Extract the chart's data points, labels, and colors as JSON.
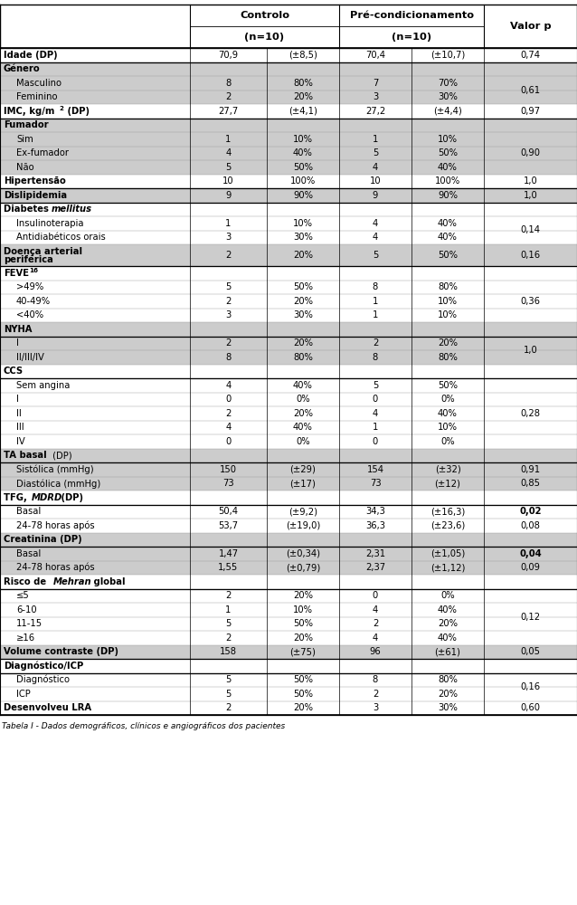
{
  "title": "Tabela I - Dados demográficos, clínicos e angiográficos dos pacientes",
  "rows": [
    {
      "label": "Idade (DP)",
      "bold": true,
      "indent": 0,
      "c1": "70,9",
      "c2": "(±8,5)",
      "c3": "70,4",
      "c4": "(±10,7)",
      "p": "0,74",
      "p_bold": false,
      "gray": false,
      "double_row": false
    },
    {
      "label": "Género",
      "bold": true,
      "indent": 0,
      "c1": "",
      "c2": "",
      "c3": "",
      "c4": "",
      "p": "",
      "p_bold": false,
      "gray": true,
      "double_row": false
    },
    {
      "label": "Masculino",
      "bold": false,
      "indent": 1,
      "c1": "8",
      "c2": "80%",
      "c3": "7",
      "c4": "70%",
      "p": "0,61",
      "p_bold": false,
      "gray": true,
      "double_row": false
    },
    {
      "label": "Feminino",
      "bold": false,
      "indent": 1,
      "c1": "2",
      "c2": "20%",
      "c3": "3",
      "c4": "30%",
      "p": "",
      "p_bold": false,
      "gray": true,
      "double_row": false
    },
    {
      "label": "IMC, kg/m² (DP)",
      "bold": true,
      "indent": 0,
      "c1": "27,7",
      "c2": "(±4,1)",
      "c3": "27,2",
      "c4": "(±4,4)",
      "p": "0,97",
      "p_bold": false,
      "gray": false,
      "double_row": false,
      "special": "imc"
    },
    {
      "label": "Fumador",
      "bold": true,
      "indent": 0,
      "c1": "",
      "c2": "",
      "c3": "",
      "c4": "",
      "p": "",
      "p_bold": false,
      "gray": true,
      "double_row": false
    },
    {
      "label": "Sim",
      "bold": false,
      "indent": 1,
      "c1": "1",
      "c2": "10%",
      "c3": "1",
      "c4": "10%",
      "p": "0,90",
      "p_bold": false,
      "gray": true,
      "double_row": false
    },
    {
      "label": "Ex-fumador",
      "bold": false,
      "indent": 1,
      "c1": "4",
      "c2": "40%",
      "c3": "5",
      "c4": "50%",
      "p": "",
      "p_bold": false,
      "gray": true,
      "double_row": false
    },
    {
      "label": "Não",
      "bold": false,
      "indent": 1,
      "c1": "5",
      "c2": "50%",
      "c3": "4",
      "c4": "40%",
      "p": "",
      "p_bold": false,
      "gray": true,
      "double_row": false
    },
    {
      "label": "Hipertensão",
      "bold": true,
      "indent": 0,
      "c1": "10",
      "c2": "100%",
      "c3": "10",
      "c4": "100%",
      "p": "1,0",
      "p_bold": false,
      "gray": false,
      "double_row": false
    },
    {
      "label": "Dislipidemia",
      "bold": true,
      "indent": 0,
      "c1": "9",
      "c2": "90%",
      "c3": "9",
      "c4": "90%",
      "p": "1,0",
      "p_bold": false,
      "gray": true,
      "double_row": false
    },
    {
      "label": "Diabetes mellitus",
      "bold": true,
      "indent": 0,
      "c1": "",
      "c2": "",
      "c3": "",
      "c4": "",
      "p": "",
      "p_bold": false,
      "gray": false,
      "double_row": false,
      "special": "diabetes"
    },
    {
      "label": "Insulinoterapia",
      "bold": false,
      "indent": 1,
      "c1": "1",
      "c2": "10%",
      "c3": "4",
      "c4": "40%",
      "p": "0,14",
      "p_bold": false,
      "gray": false,
      "double_row": false
    },
    {
      "label": "Antidiabéticos orais",
      "bold": false,
      "indent": 1,
      "c1": "3",
      "c2": "30%",
      "c3": "4",
      "c4": "40%",
      "p": "",
      "p_bold": false,
      "gray": false,
      "double_row": false
    },
    {
      "label": "Doença arterial\nperiférica",
      "bold": true,
      "indent": 0,
      "c1": "2",
      "c2": "20%",
      "c3": "5",
      "c4": "50%",
      "p": "0,16",
      "p_bold": false,
      "gray": true,
      "double_row": true
    },
    {
      "label": "FEVE",
      "bold": true,
      "indent": 0,
      "c1": "",
      "c2": "",
      "c3": "",
      "c4": "",
      "p": "",
      "p_bold": false,
      "gray": false,
      "double_row": false,
      "special": "feve"
    },
    {
      "label": ">49%",
      "bold": false,
      "indent": 1,
      "c1": "5",
      "c2": "50%",
      "c3": "8",
      "c4": "80%",
      "p": "0,36",
      "p_bold": false,
      "gray": false,
      "double_row": false
    },
    {
      "label": "40-49%",
      "bold": false,
      "indent": 1,
      "c1": "2",
      "c2": "20%",
      "c3": "1",
      "c4": "10%",
      "p": "",
      "p_bold": false,
      "gray": false,
      "double_row": false
    },
    {
      "label": "<40%",
      "bold": false,
      "indent": 1,
      "c1": "3",
      "c2": "30%",
      "c3": "1",
      "c4": "10%",
      "p": "",
      "p_bold": false,
      "gray": false,
      "double_row": false
    },
    {
      "label": "NYHA",
      "bold": true,
      "indent": 0,
      "c1": "",
      "c2": "",
      "c3": "",
      "c4": "",
      "p": "",
      "p_bold": false,
      "gray": true,
      "double_row": false
    },
    {
      "label": "I",
      "bold": false,
      "indent": 1,
      "c1": "2",
      "c2": "20%",
      "c3": "2",
      "c4": "20%",
      "p": "1,0",
      "p_bold": false,
      "gray": true,
      "double_row": false
    },
    {
      "label": "II/III/IV",
      "bold": false,
      "indent": 1,
      "c1": "8",
      "c2": "80%",
      "c3": "8",
      "c4": "80%",
      "p": "",
      "p_bold": false,
      "gray": true,
      "double_row": false
    },
    {
      "label": "CCS",
      "bold": true,
      "indent": 0,
      "c1": "",
      "c2": "",
      "c3": "",
      "c4": "",
      "p": "",
      "p_bold": false,
      "gray": false,
      "double_row": false
    },
    {
      "label": "Sem angina",
      "bold": false,
      "indent": 1,
      "c1": "4",
      "c2": "40%",
      "c3": "5",
      "c4": "50%",
      "p": "0,28",
      "p_bold": false,
      "gray": false,
      "double_row": false
    },
    {
      "label": "I",
      "bold": false,
      "indent": 1,
      "c1": "0",
      "c2": "0%",
      "c3": "0",
      "c4": "0%",
      "p": "",
      "p_bold": false,
      "gray": false,
      "double_row": false
    },
    {
      "label": "II",
      "bold": false,
      "indent": 1,
      "c1": "2",
      "c2": "20%",
      "c3": "4",
      "c4": "40%",
      "p": "",
      "p_bold": false,
      "gray": false,
      "double_row": false
    },
    {
      "label": "III",
      "bold": false,
      "indent": 1,
      "c1": "4",
      "c2": "40%",
      "c3": "1",
      "c4": "10%",
      "p": "",
      "p_bold": false,
      "gray": false,
      "double_row": false
    },
    {
      "label": "IV",
      "bold": false,
      "indent": 1,
      "c1": "0",
      "c2": "0%",
      "c3": "0",
      "c4": "0%",
      "p": "",
      "p_bold": false,
      "gray": false,
      "double_row": false
    },
    {
      "label": "TA basal (DP)",
      "bold": true,
      "indent": 0,
      "c1": "",
      "c2": "",
      "c3": "",
      "c4": "",
      "p": "",
      "p_bold": false,
      "gray": true,
      "double_row": false,
      "special": "ta_basal"
    },
    {
      "label": "Sistólica (mmHg)",
      "bold": false,
      "indent": 1,
      "c1": "150",
      "c2": "(±29)",
      "c3": "154",
      "c4": "(±32)",
      "p": "0,91",
      "p_bold": false,
      "gray": true,
      "double_row": false
    },
    {
      "label": "Diastólica (mmHg)",
      "bold": false,
      "indent": 1,
      "c1": "73",
      "c2": "(±17)",
      "c3": "73",
      "c4": "(±12)",
      "p": "0,85",
      "p_bold": false,
      "gray": true,
      "double_row": false
    },
    {
      "label": "TFG, MDRD (DP)",
      "bold": true,
      "indent": 0,
      "c1": "",
      "c2": "",
      "c3": "",
      "c4": "",
      "p": "",
      "p_bold": false,
      "gray": false,
      "double_row": false,
      "special": "tfg"
    },
    {
      "label": "Basal",
      "bold": false,
      "indent": 1,
      "c1": "50,4",
      "c2": "(±9,2)",
      "c3": "34,3",
      "c4": "(±16,3)",
      "p": "0,02",
      "p_bold": true,
      "gray": false,
      "double_row": false
    },
    {
      "label": "24-78 horas após",
      "bold": false,
      "indent": 1,
      "c1": "53,7",
      "c2": "(±19,0)",
      "c3": "36,3",
      "c4": "(±23,6)",
      "p": "0,08",
      "p_bold": false,
      "gray": false,
      "double_row": false
    },
    {
      "label": "Creatinina (DP)",
      "bold": true,
      "indent": 0,
      "c1": "",
      "c2": "",
      "c3": "",
      "c4": "",
      "p": "",
      "p_bold": false,
      "gray": true,
      "double_row": false
    },
    {
      "label": "Basal",
      "bold": false,
      "indent": 1,
      "c1": "1,47",
      "c2": "(±0,34)",
      "c3": "2,31",
      "c4": "(±1,05)",
      "p": "0,04",
      "p_bold": true,
      "gray": true,
      "double_row": false
    },
    {
      "label": "24-78 horas após",
      "bold": false,
      "indent": 1,
      "c1": "1,55",
      "c2": "(±0,79)",
      "c3": "2,37",
      "c4": "(±1,12)",
      "p": "0,09",
      "p_bold": false,
      "gray": true,
      "double_row": false
    },
    {
      "label": "Risco de Mehran global",
      "bold": true,
      "indent": 0,
      "c1": "",
      "c2": "",
      "c3": "",
      "c4": "",
      "p": "",
      "p_bold": false,
      "gray": false,
      "double_row": false,
      "special": "mehran"
    },
    {
      "label": "≤5",
      "bold": false,
      "indent": 1,
      "c1": "2",
      "c2": "20%",
      "c3": "0",
      "c4": "0%",
      "p": "0,12",
      "p_bold": false,
      "gray": false,
      "double_row": false
    },
    {
      "label": "6-10",
      "bold": false,
      "indent": 1,
      "c1": "1",
      "c2": "10%",
      "c3": "4",
      "c4": "40%",
      "p": "",
      "p_bold": false,
      "gray": false,
      "double_row": false
    },
    {
      "label": "11-15",
      "bold": false,
      "indent": 1,
      "c1": "5",
      "c2": "50%",
      "c3": "2",
      "c4": "20%",
      "p": "",
      "p_bold": false,
      "gray": false,
      "double_row": false
    },
    {
      "label": "≥16",
      "bold": false,
      "indent": 1,
      "c1": "2",
      "c2": "20%",
      "c3": "4",
      "c4": "40%",
      "p": "",
      "p_bold": false,
      "gray": false,
      "double_row": false
    },
    {
      "label": "Volume contraste (DP)",
      "bold": true,
      "indent": 0,
      "c1": "158",
      "c2": "(±75)",
      "c3": "96",
      "c4": "(±61)",
      "p": "0,05",
      "p_bold": false,
      "gray": true,
      "double_row": false
    },
    {
      "label": "Diagnóstico/ICP",
      "bold": true,
      "indent": 0,
      "c1": "",
      "c2": "",
      "c3": "",
      "c4": "",
      "p": "",
      "p_bold": false,
      "gray": false,
      "double_row": false
    },
    {
      "label": "Diagnóstico",
      "bold": false,
      "indent": 1,
      "c1": "5",
      "c2": "50%",
      "c3": "8",
      "c4": "80%",
      "p": "0,16",
      "p_bold": false,
      "gray": false,
      "double_row": false
    },
    {
      "label": "ICP",
      "bold": false,
      "indent": 1,
      "c1": "5",
      "c2": "50%",
      "c3": "2",
      "c4": "20%",
      "p": "",
      "p_bold": false,
      "gray": false,
      "double_row": false
    },
    {
      "label": "Desenvolveu LRA",
      "bold": true,
      "indent": 0,
      "c1": "2",
      "c2": "20%",
      "c3": "3",
      "c4": "30%",
      "p": "0,60",
      "p_bold": false,
      "gray": false,
      "double_row": false
    }
  ],
  "gray_color": "#CCCCCC",
  "white_color": "#FFFFFF",
  "font_size": 7.2,
  "header_font_size": 8.2,
  "caption_font_size": 6.5
}
